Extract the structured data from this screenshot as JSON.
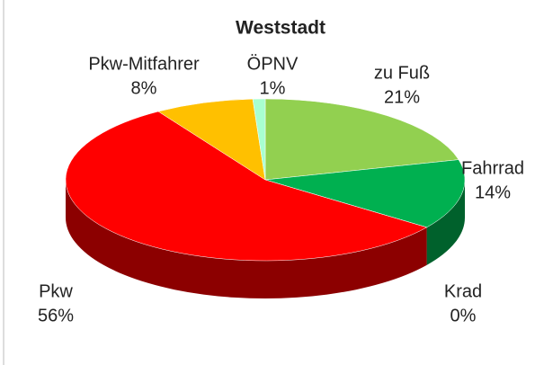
{
  "chart_data": {
    "type": "pie",
    "title": "Weststadt",
    "categories": [
      "zu Fuß",
      "Fahrrad",
      "Krad",
      "Pkw",
      "Pkw-Mitfahrer",
      "ÖPNV"
    ],
    "values": [
      21,
      14,
      0,
      56,
      8,
      1
    ],
    "value_labels": [
      "21%",
      "14%",
      "0%",
      "56%",
      "8%",
      "1%"
    ],
    "colors": [
      "#92d050",
      "#00b050",
      "#7a0000",
      "#ff0000",
      "#ffc000",
      "#a8ffd0"
    ]
  }
}
